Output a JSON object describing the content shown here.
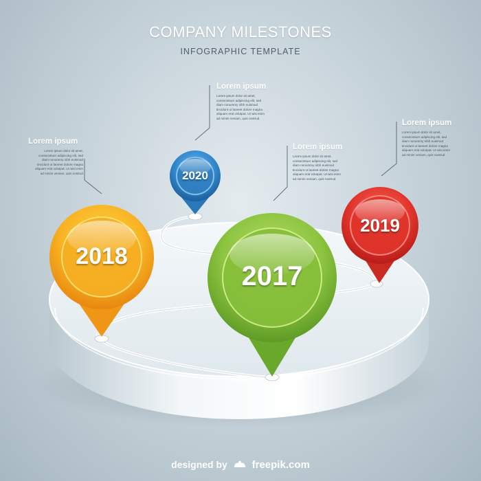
{
  "header": {
    "title": "COMPANY MILESTONES",
    "subtitle": "INFOGRAPHIC TEMPLATE"
  },
  "milestones": [
    {
      "year": "2020",
      "color": "#2f84c6"
    },
    {
      "year": "2018",
      "color": "#f2a51c"
    },
    {
      "year": "2017",
      "color": "#7bb833"
    },
    {
      "year": "2019",
      "color": "#e0352d"
    }
  ],
  "notes": [
    {
      "heading": "Lorem ipsum",
      "lines": [
        "Lorem ipsum dolor sit amet,",
        "consectetuer adipiscing elit, sed",
        "diam nonummy nibh euismod",
        "tincidunt ut laoreet dolore magna",
        "aliquam erat volutpat. Ut wisi enim",
        "ad minim veniam, quis nostrud"
      ]
    },
    {
      "heading": "Lorem ipsum",
      "lines": [
        "Lorem ipsum dolor sit amet,",
        "consectetuer adipiscing elit, sed",
        "diam nonummy nibh euismod",
        "tincidunt ut laoreet dolore magna",
        "aliquam erat volutpat. Ut wisi enim",
        "ad minim veniam, quis nostrud"
      ]
    },
    {
      "heading": "Lorem ipsum",
      "lines": [
        "Lorem ipsum dolor sit amet,",
        "consectetuer adipiscing elit, sed",
        "diam nonummy nibh euismod",
        "tincidunt ut laoreet dolore magna",
        "aliquam erat volutpat. Ut wisi enim",
        "ad minim veniam, quis nostrud"
      ]
    },
    {
      "heading": "Lorem ipsum",
      "lines": [
        "Lorem ipsum dolor sit amet,",
        "consectetuer adipiscing elit, sed",
        "diam nonummy nibh euismod",
        "tincidunt ut laoreet dolore magna",
        "aliquam erat volutpat. Ut wisi enim",
        "ad minim veniam, quis nostrud"
      ]
    }
  ],
  "footer": {
    "prefix": "designed by",
    "brand": "freepik.com"
  }
}
